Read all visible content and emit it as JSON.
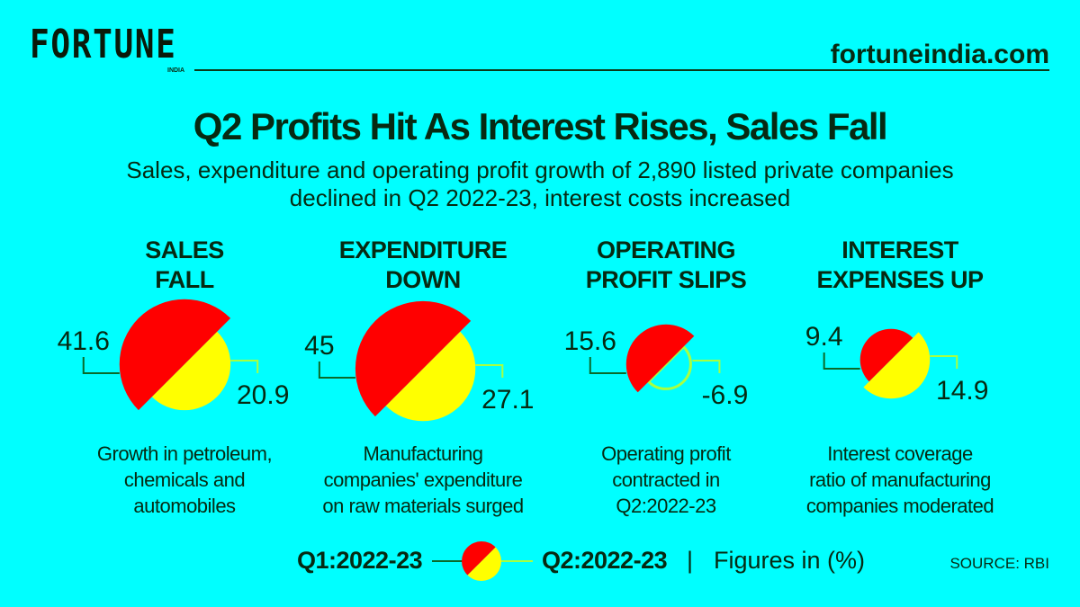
{
  "header": {
    "logo": "FORTUNE",
    "logo_sub": "INDIA",
    "site": "fortuneindia.com"
  },
  "title": "Q2 Profits Hit As Interest Rises, Sales Fall",
  "subtitle_lines": [
    "Sales, expenditure and operating profit growth of 2,890 listed private companies",
    "declined in Q2 2022-23, interest costs increased"
  ],
  "colors": {
    "background": "#00ffff",
    "q1": "#ff0000",
    "q2": "#ffff00",
    "q1_line": "#0a6a2a",
    "q2_line": "#a8ff40"
  },
  "chart_data": {
    "type": "split-circle",
    "unit": "%",
    "series": [
      {
        "name": "Q1:2022-23"
      },
      {
        "name": "Q2:2022-23"
      }
    ],
    "panels": [
      {
        "heading": [
          "SALES",
          "FALL"
        ],
        "q1": 41.6,
        "q2": 20.9,
        "q1_label": "41.6",
        "q2_label": "20.9",
        "note": [
          "Growth in petroleum,",
          "chemicals and",
          "automobiles"
        ]
      },
      {
        "heading": [
          "EXPENDITURE",
          "DOWN"
        ],
        "q1": 45,
        "q2": 27.1,
        "q1_label": "45",
        "q2_label": "27.1",
        "note": [
          "Manufacturing",
          "companies' expenditure",
          "on raw materials surged"
        ]
      },
      {
        "heading": [
          "OPERATING",
          "PROFIT SLIPS"
        ],
        "q1": 15.6,
        "q2": -6.9,
        "q1_label": "15.6",
        "q2_label": "-6.9",
        "note": [
          "Operating profit",
          "contracted in",
          "Q2:2022-23"
        ]
      },
      {
        "heading": [
          "INTEREST",
          "EXPENSES UP"
        ],
        "q1": 9.4,
        "q2": 14.9,
        "q1_label": "9.4",
        "q2_label": "14.9",
        "note": [
          "Interest coverage",
          "ratio of manufacturing",
          "companies moderated"
        ]
      }
    ]
  },
  "legend": {
    "q1": "Q1:2022-23",
    "q2": "Q2:2022-23",
    "separator": "|",
    "figures": "Figures in (%)"
  },
  "source": "SOURCE: RBI"
}
